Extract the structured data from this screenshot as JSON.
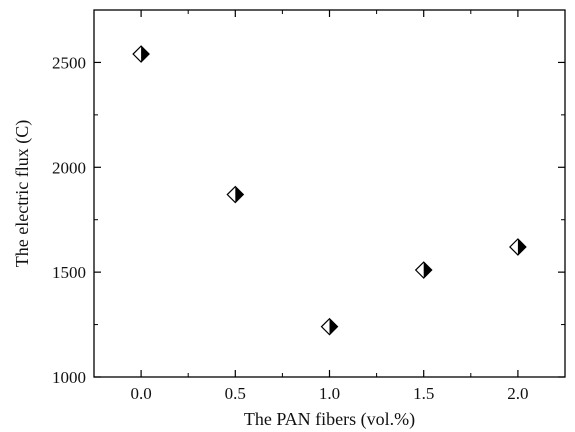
{
  "chart_data": {
    "type": "scatter",
    "title": "",
    "xlabel": "The PAN fibers (vol.%)",
    "ylabel": "The electric flux (C)",
    "xlim": [
      -0.25,
      2.25
    ],
    "ylim": [
      1000,
      2750
    ],
    "x_ticks": [
      0.0,
      0.5,
      1.0,
      1.5,
      2.0
    ],
    "x_tick_labels": [
      "0.0",
      "0.5",
      "1.0",
      "1.5",
      "2.0"
    ],
    "y_ticks": [
      1000,
      1500,
      2000,
      2500
    ],
    "y_tick_labels": [
      "1000",
      "1500",
      "2000",
      "2500"
    ],
    "grid": false,
    "marker": "half-filled-diamond",
    "marker_color": "#000000",
    "series": [
      {
        "x": [
          0.0,
          0.5,
          1.0,
          1.5,
          2.0
        ],
        "y": [
          2540,
          1870,
          1240,
          1510,
          1620
        ]
      }
    ]
  }
}
